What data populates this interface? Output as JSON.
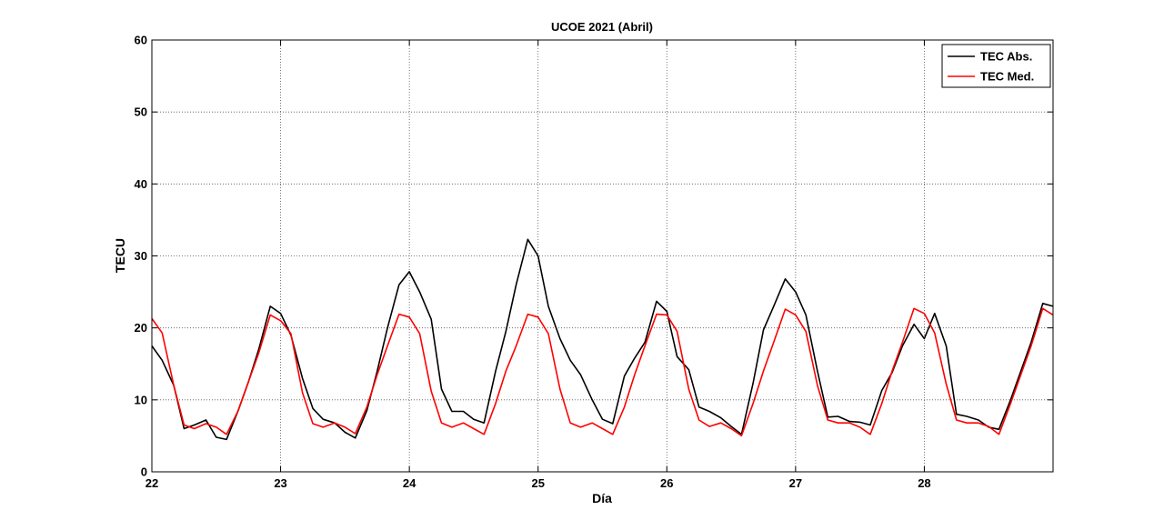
{
  "chart_data": {
    "type": "line",
    "title": "UCOE 2021 (Abril)",
    "xlabel": "Día",
    "ylabel": "TECU",
    "xlim": [
      22,
      29
    ],
    "ylim": [
      0,
      60
    ],
    "xticks": [
      22,
      23,
      24,
      25,
      26,
      27,
      28
    ],
    "yticks": [
      0,
      10,
      20,
      30,
      40,
      50,
      60
    ],
    "grid": true,
    "legend": {
      "placement": "top-right",
      "entries": [
        "TEC Abs.",
        "TEC Med."
      ]
    },
    "series": [
      {
        "name": "TEC Abs.",
        "color": "#000000",
        "points": [
          [
            22.0,
            17.5
          ],
          [
            22.08,
            15.5
          ],
          [
            22.17,
            12.0
          ],
          [
            22.25,
            6.0
          ],
          [
            22.33,
            6.5
          ],
          [
            22.42,
            7.2
          ],
          [
            22.5,
            4.8
          ],
          [
            22.58,
            4.5
          ],
          [
            22.67,
            8.5
          ],
          [
            22.75,
            12.5
          ],
          [
            22.83,
            17.0
          ],
          [
            22.92,
            23.0
          ],
          [
            23.0,
            22.0
          ],
          [
            23.08,
            19.0
          ],
          [
            23.17,
            13.0
          ],
          [
            23.25,
            8.8
          ],
          [
            23.33,
            7.3
          ],
          [
            23.42,
            6.8
          ],
          [
            23.5,
            5.5
          ],
          [
            23.58,
            4.7
          ],
          [
            23.67,
            8.5
          ],
          [
            23.75,
            14.0
          ],
          [
            23.83,
            20.0
          ],
          [
            23.92,
            26.0
          ],
          [
            24.0,
            27.8
          ],
          [
            24.08,
            25.0
          ],
          [
            24.17,
            21.2
          ],
          [
            24.25,
            11.5
          ],
          [
            24.33,
            8.4
          ],
          [
            24.42,
            8.4
          ],
          [
            24.5,
            7.3
          ],
          [
            24.58,
            6.8
          ],
          [
            24.67,
            14.0
          ],
          [
            24.75,
            19.5
          ],
          [
            24.83,
            26.0
          ],
          [
            24.92,
            32.3
          ],
          [
            25.0,
            30.0
          ],
          [
            25.08,
            23.0
          ],
          [
            25.17,
            18.5
          ],
          [
            25.25,
            15.5
          ],
          [
            25.33,
            13.5
          ],
          [
            25.42,
            10.0
          ],
          [
            25.5,
            7.3
          ],
          [
            25.58,
            6.7
          ],
          [
            25.67,
            13.3
          ],
          [
            25.75,
            15.8
          ],
          [
            25.83,
            18.0
          ],
          [
            25.92,
            23.7
          ],
          [
            26.0,
            22.3
          ],
          [
            26.08,
            16.0
          ],
          [
            26.17,
            14.2
          ],
          [
            26.25,
            9.0
          ],
          [
            26.33,
            8.4
          ],
          [
            26.42,
            7.5
          ],
          [
            26.5,
            6.3
          ],
          [
            26.58,
            5.2
          ],
          [
            26.67,
            12.3
          ],
          [
            26.75,
            19.7
          ],
          [
            26.83,
            23.0
          ],
          [
            26.92,
            26.8
          ],
          [
            27.0,
            25.0
          ],
          [
            27.08,
            21.8
          ],
          [
            27.17,
            14.0
          ],
          [
            27.25,
            7.6
          ],
          [
            27.33,
            7.7
          ],
          [
            27.42,
            7.0
          ],
          [
            27.5,
            6.9
          ],
          [
            27.58,
            6.5
          ],
          [
            27.67,
            11.3
          ],
          [
            27.75,
            13.8
          ],
          [
            27.83,
            17.5
          ],
          [
            27.92,
            20.5
          ],
          [
            28.0,
            18.5
          ],
          [
            28.08,
            22.0
          ],
          [
            28.17,
            17.5
          ],
          [
            28.25,
            8.0
          ],
          [
            28.33,
            7.7
          ],
          [
            28.42,
            7.2
          ],
          [
            28.5,
            6.2
          ],
          [
            28.58,
            5.9
          ],
          [
            28.67,
            10.0
          ],
          [
            28.75,
            14.0
          ],
          [
            28.83,
            18.0
          ],
          [
            28.92,
            23.4
          ],
          [
            29.0,
            23.0
          ]
        ]
      },
      {
        "name": "TEC Med.",
        "color": "#ff0000",
        "points": [
          [
            22.0,
            21.3
          ],
          [
            22.08,
            19.3
          ],
          [
            22.17,
            12.0
          ],
          [
            22.25,
            6.5
          ],
          [
            22.33,
            6.0
          ],
          [
            22.42,
            6.7
          ],
          [
            22.5,
            6.2
          ],
          [
            22.58,
            5.2
          ],
          [
            22.67,
            8.5
          ],
          [
            22.75,
            12.5
          ],
          [
            22.83,
            16.5
          ],
          [
            22.92,
            21.8
          ],
          [
            23.0,
            21.0
          ],
          [
            23.08,
            19.2
          ],
          [
            23.17,
            11.0
          ],
          [
            23.25,
            6.7
          ],
          [
            23.33,
            6.2
          ],
          [
            23.42,
            6.8
          ],
          [
            23.5,
            6.2
          ],
          [
            23.58,
            5.3
          ],
          [
            23.67,
            9.0
          ],
          [
            23.75,
            13.5
          ],
          [
            23.83,
            17.5
          ],
          [
            23.92,
            21.9
          ],
          [
            24.0,
            21.5
          ],
          [
            24.08,
            19.2
          ],
          [
            24.17,
            11.2
          ],
          [
            24.25,
            6.8
          ],
          [
            24.33,
            6.2
          ],
          [
            24.42,
            6.8
          ],
          [
            24.5,
            6.0
          ],
          [
            24.58,
            5.2
          ],
          [
            24.67,
            9.5
          ],
          [
            24.75,
            14.0
          ],
          [
            24.83,
            17.5
          ],
          [
            24.92,
            21.9
          ],
          [
            25.0,
            21.5
          ],
          [
            25.08,
            19.2
          ],
          [
            25.17,
            11.5
          ],
          [
            25.25,
            6.8
          ],
          [
            25.33,
            6.2
          ],
          [
            25.42,
            6.8
          ],
          [
            25.5,
            6.0
          ],
          [
            25.58,
            5.2
          ],
          [
            25.67,
            9.0
          ],
          [
            25.75,
            13.5
          ],
          [
            25.83,
            17.5
          ],
          [
            25.92,
            21.9
          ],
          [
            26.0,
            21.8
          ],
          [
            26.08,
            19.5
          ],
          [
            26.17,
            11.5
          ],
          [
            26.25,
            7.2
          ],
          [
            26.33,
            6.3
          ],
          [
            26.42,
            6.8
          ],
          [
            26.5,
            6.0
          ],
          [
            26.58,
            5.0
          ],
          [
            26.67,
            9.5
          ],
          [
            26.75,
            14.0
          ],
          [
            26.83,
            18.0
          ],
          [
            26.92,
            22.6
          ],
          [
            27.0,
            21.8
          ],
          [
            27.08,
            19.5
          ],
          [
            27.17,
            12.0
          ],
          [
            27.25,
            7.2
          ],
          [
            27.33,
            6.8
          ],
          [
            27.42,
            6.8
          ],
          [
            27.5,
            6.2
          ],
          [
            27.58,
            5.2
          ],
          [
            27.67,
            9.5
          ],
          [
            27.75,
            14.0
          ],
          [
            27.83,
            18.0
          ],
          [
            27.92,
            22.7
          ],
          [
            28.0,
            22.0
          ],
          [
            28.08,
            19.3
          ],
          [
            28.17,
            12.2
          ],
          [
            28.25,
            7.2
          ],
          [
            28.33,
            6.8
          ],
          [
            28.42,
            6.8
          ],
          [
            28.5,
            6.3
          ],
          [
            28.58,
            5.2
          ],
          [
            28.67,
            9.5
          ],
          [
            28.75,
            13.5
          ],
          [
            28.83,
            17.5
          ],
          [
            28.92,
            22.7
          ],
          [
            29.0,
            21.8
          ]
        ]
      }
    ]
  }
}
